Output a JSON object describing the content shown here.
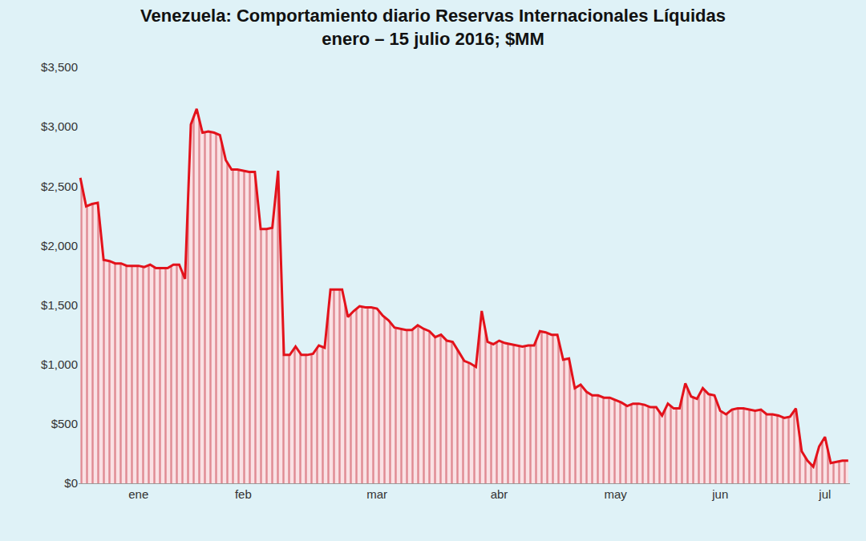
{
  "chart_data": {
    "type": "line",
    "title": "Venezuela: Comportamiento diario Reservas Internacionales Líquidas\nenero – 15 julio 2016; $MM",
    "categories": [
      null,
      null,
      null,
      null,
      null,
      null,
      null,
      null,
      null,
      null,
      "ene",
      null,
      null,
      null,
      null,
      null,
      null,
      null,
      null,
      null,
      null,
      null,
      null,
      null,
      null,
      null,
      null,
      null,
      "feb",
      null,
      null,
      null,
      null,
      null,
      null,
      null,
      null,
      null,
      null,
      null,
      null,
      null,
      null,
      null,
      null,
      null,
      null,
      null,
      null,
      null,
      null,
      "mar",
      null,
      null,
      null,
      null,
      null,
      null,
      null,
      null,
      null,
      null,
      null,
      null,
      null,
      null,
      null,
      null,
      null,
      null,
      null,
      null,
      "abr",
      null,
      null,
      null,
      null,
      null,
      null,
      null,
      null,
      null,
      null,
      null,
      null,
      null,
      null,
      null,
      null,
      null,
      null,
      null,
      "may",
      null,
      null,
      null,
      null,
      null,
      null,
      null,
      null,
      null,
      null,
      null,
      null,
      null,
      null,
      null,
      null,
      null,
      "jun",
      null,
      null,
      null,
      null,
      null,
      null,
      null,
      null,
      null,
      null,
      null,
      null,
      null,
      null,
      null,
      null,
      null,
      "jul",
      null,
      null,
      null,
      null
    ],
    "values": [
      2570,
      2330,
      2350,
      2360,
      1880,
      1870,
      1850,
      1850,
      1830,
      1830,
      1830,
      1820,
      1840,
      1810,
      1810,
      1810,
      1840,
      1840,
      1720,
      3020,
      3150,
      2950,
      2960,
      2950,
      2930,
      2720,
      2640,
      2640,
      2630,
      2620,
      2620,
      2140,
      2140,
      2150,
      2630,
      1080,
      1080,
      1150,
      1080,
      1080,
      1090,
      1160,
      1140,
      1630,
      1630,
      1630,
      1400,
      1450,
      1490,
      1480,
      1480,
      1470,
      1410,
      1370,
      1310,
      1300,
      1290,
      1290,
      1330,
      1300,
      1280,
      1230,
      1250,
      1200,
      1190,
      1110,
      1030,
      1010,
      980,
      1450,
      1190,
      1170,
      1200,
      1180,
      1170,
      1160,
      1150,
      1160,
      1160,
      1280,
      1270,
      1250,
      1250,
      1040,
      1050,
      800,
      830,
      770,
      740,
      740,
      720,
      720,
      700,
      680,
      650,
      670,
      670,
      660,
      640,
      640,
      570,
      670,
      630,
      630,
      840,
      730,
      710,
      800,
      750,
      740,
      610,
      580,
      620,
      630,
      630,
      620,
      610,
      620,
      580,
      580,
      570,
      550,
      560,
      630,
      270,
      190,
      140,
      310,
      390,
      170,
      180,
      190,
      190
    ],
    "color": "#e3121b",
    "ylim": [
      0,
      3500
    ],
    "yticks": [
      {
        "value": 0,
        "label": "$0"
      },
      {
        "value": 500,
        "label": "$500"
      },
      {
        "value": 1000,
        "label": "$1,000"
      },
      {
        "value": 1500,
        "label": "$1,500"
      },
      {
        "value": 2000,
        "label": "$2,000"
      },
      {
        "value": 2500,
        "label": "$2,500"
      },
      {
        "value": 3000,
        "label": "$3,000"
      },
      {
        "value": 3500,
        "label": "$3,500"
      }
    ],
    "grid": false
  }
}
